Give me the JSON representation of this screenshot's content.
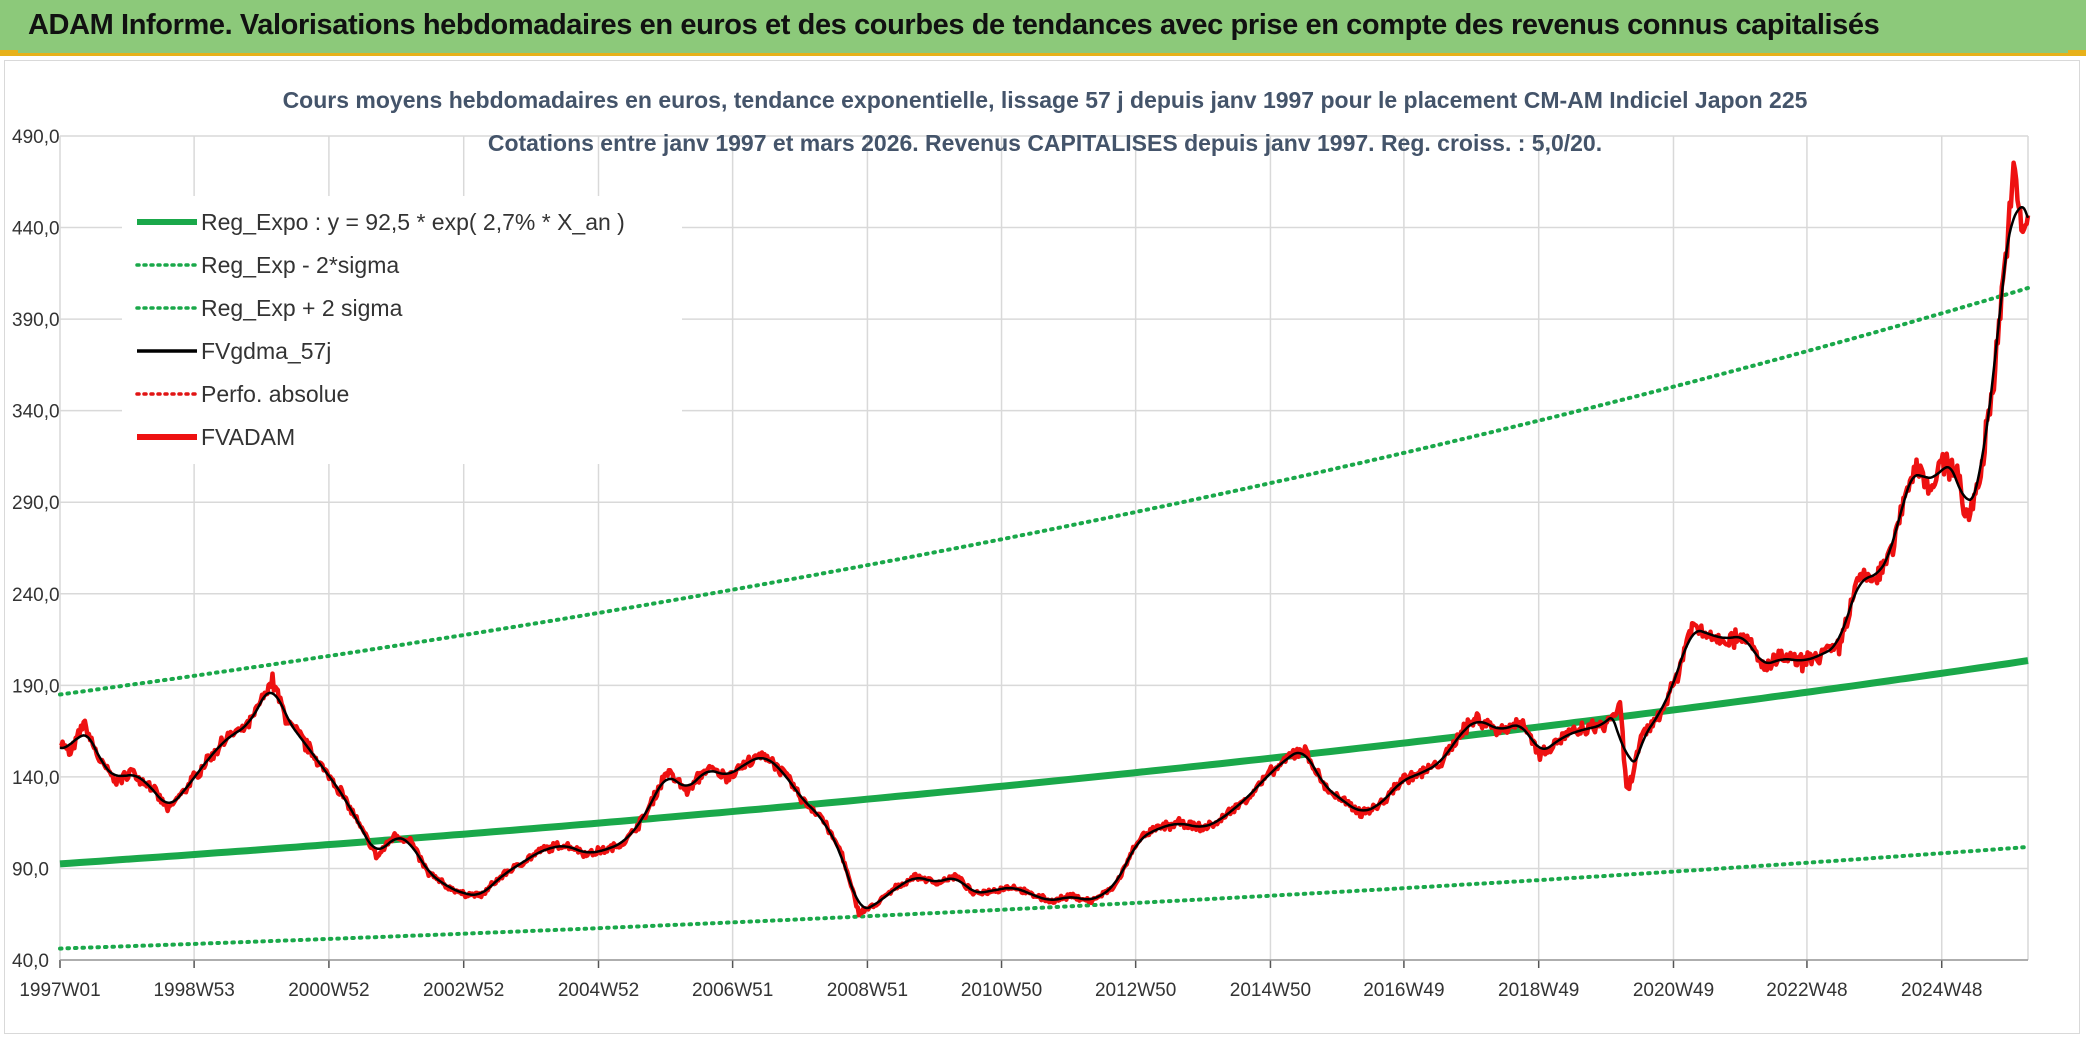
{
  "header": {
    "title": "ADAM Informe. Valorisations hebdomadaires en euros et des courbes de tendances avec prise en compte des revenus connus capitalisés"
  },
  "colors": {
    "header_bg": "#8cc97a",
    "header_border": "#e7b11a",
    "trend_green": "#1aa84a",
    "sigma_green": "#1aa84a",
    "smooth_black": "#000000",
    "perf_red": "#e11414",
    "fvadam_red": "#ee1111",
    "grid": "#d9d9d9",
    "title_text": "#44546a"
  },
  "chart_data": {
    "type": "line",
    "title": "Cours moyens hebdomadaires en euros, tendance exponentielle, lissage 57 j depuis janv 1997 pour le placement CM-AM Indiciel Japon 225",
    "subtitle": "Cotations entre janv 1997 et mars 2026. Revenus CAPITALISES depuis janv 1997. Reg. croiss. : 5,0/20.",
    "ylim": [
      40,
      490
    ],
    "yticks": [
      40,
      90,
      140,
      190,
      240,
      290,
      340,
      390,
      440,
      490
    ],
    "ytick_labels": [
      "40,0",
      "90,0",
      "140,0",
      "190,0",
      "240,0",
      "290,0",
      "340,0",
      "390,0",
      "440,0",
      "490,0"
    ],
    "xlim": [
      1997.0,
      2026.2
    ],
    "xticks": [
      1997.0,
      1998.99,
      2000.99,
      2002.99,
      2004.99,
      2006.98,
      2008.98,
      2010.97,
      2012.96,
      2014.96,
      2016.94,
      2018.94,
      2020.94,
      2022.92,
      2024.92
    ],
    "xtick_labels": [
      "1997W01",
      "1998W53",
      "2000W52",
      "2002W52",
      "2004W52",
      "2006W51",
      "2008W51",
      "2010W50",
      "2012W50",
      "2014W50",
      "2016W49",
      "2018W49",
      "2020W49",
      "2022W48",
      "2024W48"
    ],
    "grid": true,
    "legend_position": "top-left",
    "legend": [
      {
        "key": "reg_expo",
        "label": "Reg_Expo : y = 92,5 * exp( 2,7% *  X_an )",
        "style": "solid-thick",
        "color": "#1aa84a"
      },
      {
        "key": "reg_lo",
        "label": "Reg_Exp - 2*sigma",
        "style": "dotted",
        "color": "#1aa84a"
      },
      {
        "key": "reg_hi",
        "label": "Reg_Exp + 2 sigma",
        "style": "dotted",
        "color": "#1aa84a"
      },
      {
        "key": "smooth",
        "label": "FVgdma_57j",
        "style": "solid",
        "color": "#000000"
      },
      {
        "key": "perfo",
        "label": "Perfo. absolue",
        "style": "dotted",
        "color": "#e11414"
      },
      {
        "key": "fvadam",
        "label": "FVADAM",
        "style": "solid-thick",
        "color": "#ee1111"
      }
    ],
    "trend": {
      "a": 92.5,
      "rate": 0.027,
      "x0": 1997.0,
      "lower_factor": 0.5,
      "upper_factor": 2.0
    },
    "series_points": [
      [
        1997.0,
        160
      ],
      [
        1997.15,
        152
      ],
      [
        1997.35,
        170
      ],
      [
        1997.6,
        148
      ],
      [
        1997.85,
        138
      ],
      [
        1998.05,
        143
      ],
      [
        1998.35,
        135
      ],
      [
        1998.6,
        122
      ],
      [
        1998.9,
        135
      ],
      [
        1999.2,
        150
      ],
      [
        1999.5,
        162
      ],
      [
        1999.8,
        168
      ],
      [
        2000.0,
        182
      ],
      [
        2000.15,
        193
      ],
      [
        2000.35,
        172
      ],
      [
        2000.6,
        160
      ],
      [
        2000.9,
        145
      ],
      [
        2001.2,
        130
      ],
      [
        2001.5,
        110
      ],
      [
        2001.7,
        96
      ],
      [
        2001.95,
        108
      ],
      [
        2002.2,
        105
      ],
      [
        2002.45,
        88
      ],
      [
        2002.75,
        80
      ],
      [
        2003.0,
        76
      ],
      [
        2003.25,
        75
      ],
      [
        2003.55,
        86
      ],
      [
        2003.85,
        93
      ],
      [
        2004.15,
        100
      ],
      [
        2004.5,
        103
      ],
      [
        2004.8,
        98
      ],
      [
        2005.1,
        100
      ],
      [
        2005.4,
        105
      ],
      [
        2005.7,
        120
      ],
      [
        2006.0,
        143
      ],
      [
        2006.3,
        132
      ],
      [
        2006.6,
        145
      ],
      [
        2006.9,
        140
      ],
      [
        2007.2,
        148
      ],
      [
        2007.45,
        152
      ],
      [
        2007.75,
        142
      ],
      [
        2008.0,
        128
      ],
      [
        2008.3,
        118
      ],
      [
        2008.6,
        98
      ],
      [
        2008.85,
        66
      ],
      [
        2009.1,
        70
      ],
      [
        2009.35,
        78
      ],
      [
        2009.7,
        86
      ],
      [
        2010.0,
        82
      ],
      [
        2010.3,
        86
      ],
      [
        2010.55,
        76
      ],
      [
        2010.85,
        78
      ],
      [
        2011.15,
        80
      ],
      [
        2011.4,
        76
      ],
      [
        2011.7,
        72
      ],
      [
        2012.0,
        75
      ],
      [
        2012.3,
        72
      ],
      [
        2012.65,
        80
      ],
      [
        2013.0,
        106
      ],
      [
        2013.3,
        112
      ],
      [
        2013.6,
        115
      ],
      [
        2013.95,
        112
      ],
      [
        2014.2,
        116
      ],
      [
        2014.6,
        128
      ],
      [
        2014.9,
        140
      ],
      [
        2015.2,
        150
      ],
      [
        2015.45,
        156
      ],
      [
        2015.75,
        135
      ],
      [
        2016.0,
        128
      ],
      [
        2016.3,
        120
      ],
      [
        2016.6,
        125
      ],
      [
        2016.9,
        138
      ],
      [
        2017.2,
        142
      ],
      [
        2017.5,
        148
      ],
      [
        2017.8,
        165
      ],
      [
        2018.05,
        172
      ],
      [
        2018.35,
        165
      ],
      [
        2018.7,
        170
      ],
      [
        2018.95,
        152
      ],
      [
        2019.3,
        162
      ],
      [
        2019.6,
        166
      ],
      [
        2019.9,
        168
      ],
      [
        2020.15,
        178
      ],
      [
        2020.25,
        130
      ],
      [
        2020.45,
        160
      ],
      [
        2020.75,
        175
      ],
      [
        2021.0,
        196
      ],
      [
        2021.2,
        222
      ],
      [
        2021.45,
        218
      ],
      [
        2021.75,
        215
      ],
      [
        2022.0,
        218
      ],
      [
        2022.25,
        200
      ],
      [
        2022.55,
        205
      ],
      [
        2022.85,
        203
      ],
      [
        2023.1,
        206
      ],
      [
        2023.4,
        212
      ],
      [
        2023.7,
        250
      ],
      [
        2023.95,
        248
      ],
      [
        2024.2,
        265
      ],
      [
        2024.4,
        300
      ],
      [
        2024.55,
        310
      ],
      [
        2024.75,
        298
      ],
      [
        2024.95,
        312
      ],
      [
        2025.15,
        308
      ],
      [
        2025.3,
        278
      ],
      [
        2025.5,
        305
      ],
      [
        2025.7,
        360
      ],
      [
        2025.85,
        420
      ],
      [
        2026.0,
        470
      ],
      [
        2026.1,
        440
      ],
      [
        2026.2,
        445
      ]
    ]
  }
}
